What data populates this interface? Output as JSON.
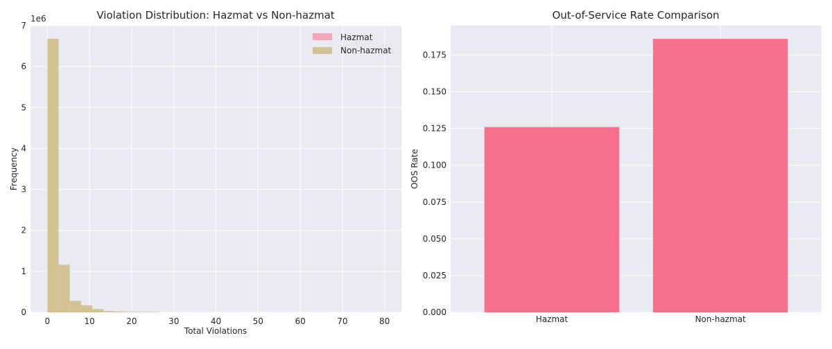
{
  "chart_data": [
    {
      "type": "histogram",
      "title": "Violation Distribution: Hazmat vs Non-hazmat",
      "xlabel": "Total Violations",
      "ylabel": "Frequency",
      "y_offset_label": "1e6",
      "xlim": [
        -4,
        84
      ],
      "ylim": [
        0,
        7
      ],
      "xticks": [
        0,
        10,
        20,
        30,
        40,
        50,
        60,
        70,
        80
      ],
      "yticks": [
        0,
        1,
        2,
        3,
        4,
        5,
        6,
        7
      ],
      "legend_position": "top-right",
      "series": [
        {
          "name": "Hazmat",
          "color": "#f2a7b8",
          "bin_edges": [
            0,
            2.67,
            5.33,
            8,
            10.67,
            13.33,
            16,
            18.67,
            21.33,
            24,
            26.67
          ],
          "values": [
            0.03,
            0.005,
            0.001,
            0.0005,
            0.0002,
            0.0001,
            0,
            0,
            0,
            0
          ]
        },
        {
          "name": "Non-hazmat",
          "color": "#d5c292",
          "bin_edges": [
            0,
            2.67,
            5.33,
            8,
            10.67,
            13.33,
            16,
            18.67,
            21.33,
            24,
            26.67
          ],
          "values": [
            6.68,
            1.16,
            0.28,
            0.17,
            0.08,
            0.03,
            0.02,
            0.01,
            0.01,
            0.01
          ]
        }
      ]
    },
    {
      "type": "bar",
      "title": "Out-of-Service Rate Comparison",
      "xlabel": "",
      "ylabel": "OOS Rate",
      "categories": [
        "Hazmat",
        "Non-hazmat"
      ],
      "values": [
        0.126,
        0.186
      ],
      "color": "#f7718a",
      "ylim": [
        0,
        0.195
      ],
      "yticks": [
        "0.000",
        "0.025",
        "0.050",
        "0.075",
        "0.100",
        "0.125",
        "0.150",
        "0.175"
      ]
    }
  ]
}
